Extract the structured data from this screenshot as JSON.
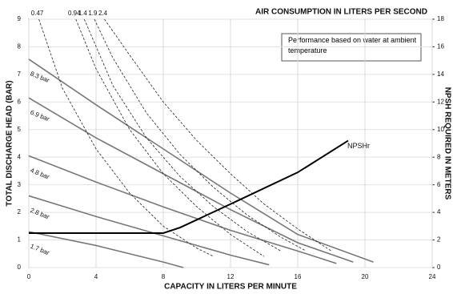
{
  "chart_data": {
    "type": "line",
    "xlabel": "CAPACITY IN LITERS PER MINUTE",
    "ylabel": "TOTAL DISCHARGE HEAD (BAR)",
    "y2label": "NPSH REQUIRED IN METERS",
    "toplabel": "AIR CONSUMPTION IN LITERS PER SECOND",
    "annotation": "Performance based on water at ambient temperature",
    "xlim": [
      0,
      24
    ],
    "xticks": [
      0,
      4,
      8,
      12,
      16,
      20,
      24
    ],
    "ylim": [
      0,
      9
    ],
    "yticks": [
      0,
      1,
      2,
      3,
      4,
      5,
      6,
      7,
      8,
      9
    ],
    "y2lim": [
      0,
      18
    ],
    "y2ticks": [
      0,
      2,
      4,
      6,
      8,
      10,
      12,
      14,
      16,
      18
    ],
    "grid": true,
    "series": [
      {
        "name": "8.3 bar",
        "color": "#777777",
        "style": "solid",
        "x": [
          0,
          4,
          8,
          12,
          16,
          20.5
        ],
        "values": [
          7.55,
          5.9,
          4.3,
          2.7,
          1.2,
          0.2
        ]
      },
      {
        "name": "6.9 bar",
        "color": "#777777",
        "style": "solid",
        "x": [
          0,
          4,
          8,
          12,
          16,
          19.3
        ],
        "values": [
          6.15,
          4.7,
          3.4,
          2.1,
          0.9,
          0.2
        ]
      },
      {
        "name": "4.8 bar",
        "color": "#777777",
        "style": "solid",
        "x": [
          0,
          4,
          8,
          12,
          16,
          18.3
        ],
        "values": [
          4.05,
          3.1,
          2.2,
          1.35,
          0.6,
          0.15
        ]
      },
      {
        "name": "2.8 bar",
        "color": "#777777",
        "style": "solid",
        "x": [
          0,
          4,
          8,
          12,
          14.3
        ],
        "values": [
          2.6,
          1.85,
          1.15,
          0.45,
          0.1
        ]
      },
      {
        "name": "1.7 bar",
        "color": "#777777",
        "style": "solid",
        "x": [
          0,
          4,
          8,
          9.2
        ],
        "values": [
          1.3,
          0.8,
          0.2,
          0
        ]
      },
      {
        "name": "0.47",
        "color": "#222222",
        "style": "dashed",
        "x": [
          0.6,
          2,
          4,
          6,
          8,
          10,
          11
        ],
        "values": [
          9,
          6.5,
          4.3,
          2.7,
          1.5,
          0.7,
          0.4
        ]
      },
      {
        "name": "0.94",
        "color": "#222222",
        "style": "dashed",
        "x": [
          2.8,
          4,
          6,
          8,
          10,
          12,
          14
        ],
        "values": [
          9,
          7.2,
          5,
          3.4,
          2.2,
          1.2,
          0.4
        ]
      },
      {
        "name": "1.4",
        "color": "#222222",
        "style": "dashed",
        "x": [
          3.3,
          5,
          7,
          9,
          11,
          13,
          15
        ],
        "values": [
          9,
          6.6,
          4.7,
          3.3,
          2.2,
          1.3,
          0.6
        ]
      },
      {
        "name": "1.9",
        "color": "#222222",
        "style": "dashed",
        "x": [
          3.9,
          5,
          7,
          9,
          11,
          13,
          15,
          16.5
        ],
        "values": [
          9,
          7.6,
          5.6,
          4.1,
          2.9,
          1.9,
          1.1,
          0.6
        ]
      },
      {
        "name": "2.4",
        "color": "#222222",
        "style": "dashed",
        "x": [
          4.5,
          6,
          8,
          10,
          12,
          14,
          16,
          18
        ],
        "values": [
          9,
          7.7,
          6,
          4.6,
          3.4,
          2.3,
          1.4,
          0.6
        ]
      },
      {
        "name": "NPSHr",
        "color": "#000000",
        "style": "bold",
        "axis": "y2",
        "x": [
          0,
          8,
          9,
          12,
          16,
          19
        ],
        "values": [
          2.5,
          2.5,
          2.9,
          4.6,
          6.9,
          9.2
        ]
      }
    ]
  }
}
